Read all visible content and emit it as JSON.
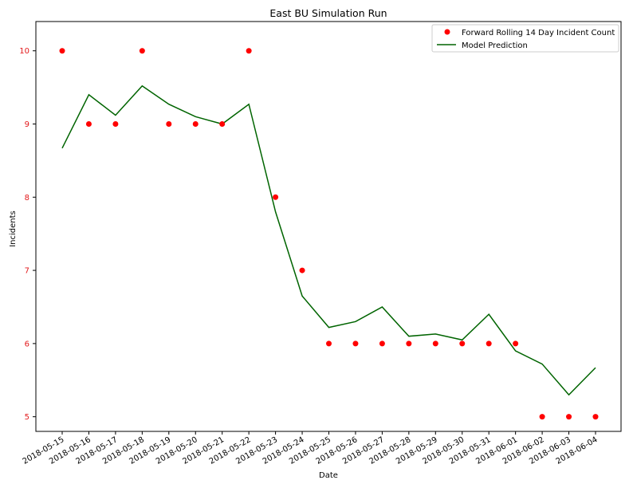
{
  "chart_data": {
    "type": "line",
    "title": "East BU Simulation Run",
    "xlabel": "Date",
    "ylabel": "Incidents",
    "ylabel_color": "#e31a1c",
    "y_tick_color": "#e31a1c",
    "ylim": [
      4.8,
      10.4
    ],
    "yticks": [
      5,
      6,
      7,
      8,
      9,
      10
    ],
    "legend_position": "top-right",
    "grid": false,
    "x": [
      "2018-05-15",
      "2018-05-16",
      "2018-05-17",
      "2018-05-18",
      "2018-05-19",
      "2018-05-20",
      "2018-05-21",
      "2018-05-22",
      "2018-05-23",
      "2018-05-24",
      "2018-05-25",
      "2018-05-26",
      "2018-05-27",
      "2018-05-28",
      "2018-05-29",
      "2018-05-30",
      "2018-05-31",
      "2018-06-01",
      "2018-06-02",
      "2018-06-03",
      "2018-06-04"
    ],
    "series": [
      {
        "name": "Forward Rolling 14 Day Incident Count",
        "kind": "scatter",
        "color": "#ff0000",
        "values": [
          10,
          9,
          9,
          10,
          9,
          9,
          9,
          10,
          8,
          7,
          6,
          6,
          6,
          6,
          6,
          6,
          6,
          6,
          5,
          5,
          5
        ]
      },
      {
        "name": "Model Prediction",
        "kind": "line",
        "color": "#006400",
        "values": [
          8.67,
          9.4,
          9.12,
          9.52,
          9.27,
          9.1,
          9.0,
          9.27,
          7.8,
          6.65,
          6.22,
          6.3,
          6.5,
          6.1,
          6.13,
          6.05,
          6.4,
          5.9,
          5.72,
          5.3,
          5.67
        ]
      }
    ]
  }
}
